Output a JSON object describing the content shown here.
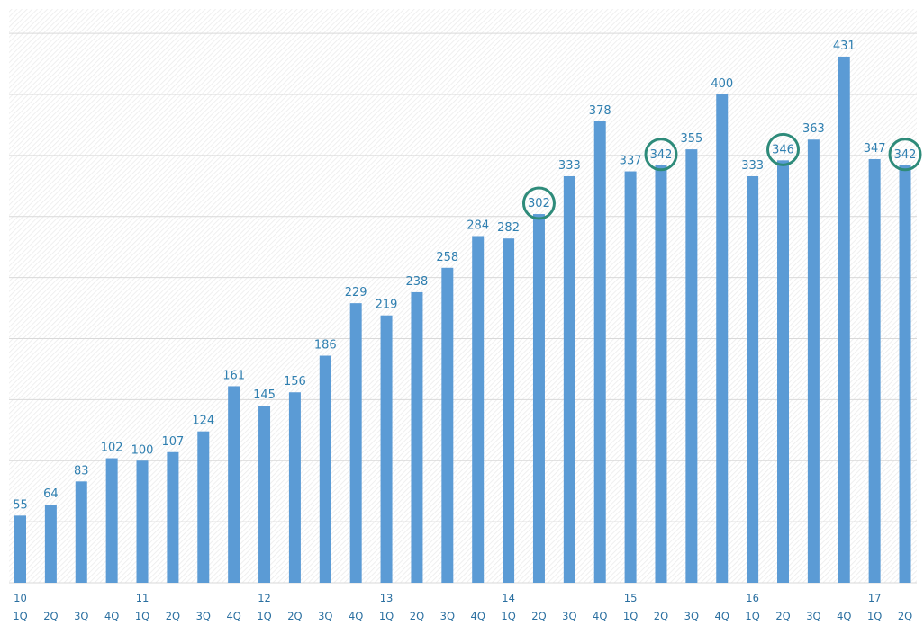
{
  "chart_data": {
    "type": "bar",
    "categories": [
      "1Q",
      "2Q",
      "3Q",
      "4Q",
      "1Q",
      "2Q",
      "3Q",
      "4Q",
      "1Q",
      "2Q",
      "3Q",
      "4Q",
      "1Q",
      "2Q",
      "3Q",
      "4Q",
      "1Q",
      "2Q",
      "3Q",
      "4Q",
      "1Q",
      "2Q",
      "3Q",
      "4Q",
      "1Q",
      "2Q",
      "3Q",
      "4Q",
      "1Q",
      "2Q"
    ],
    "year_labels": [
      "10",
      "11",
      "12",
      "13",
      "14",
      "15",
      "16",
      "17"
    ],
    "values": [
      55,
      64,
      83,
      102,
      100,
      107,
      124,
      161,
      145,
      156,
      186,
      229,
      219,
      238,
      258,
      284,
      282,
      302,
      333,
      378,
      337,
      342,
      355,
      400,
      333,
      346,
      363,
      431,
      347,
      342
    ],
    "highlighted_indices": [
      17,
      21,
      25,
      29
    ],
    "title": "",
    "xlabel": "",
    "ylabel": "",
    "ylim": [
      0,
      470
    ],
    "grid": true,
    "bar_color": "#5b9bd5",
    "highlight_color": "#2e8b7a",
    "label_color": "#2f7fb0"
  }
}
